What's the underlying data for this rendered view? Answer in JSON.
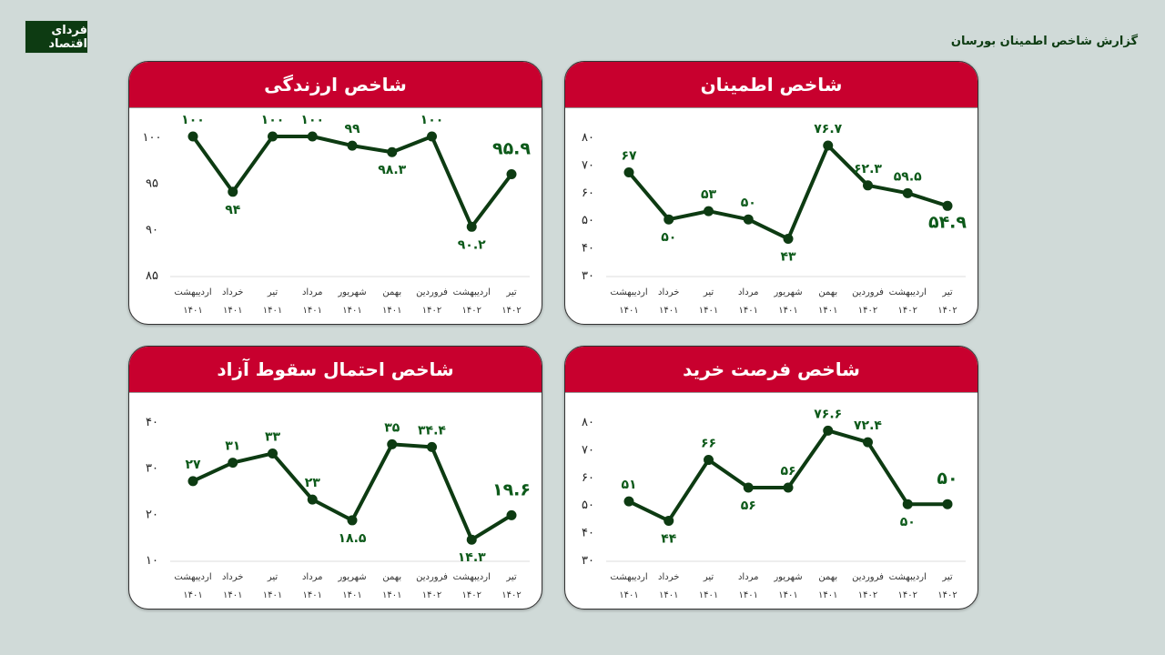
{
  "header": {
    "report_title": "گزارش شاخص اطمینان بورسان",
    "logo_text": "فردای اقتصاد"
  },
  "colors": {
    "line": "#0d3b12",
    "header": "#c8002e",
    "label": "#0d5a1a"
  },
  "chart_data": [
    {
      "type": "line",
      "title": "شاخص ارزندگی",
      "categories": [
        [
          "اردیبهشت",
          "۱۴۰۱"
        ],
        [
          "خرداد",
          "۱۴۰۱"
        ],
        [
          "تیر",
          "۱۴۰۱"
        ],
        [
          "مرداد",
          "۱۴۰۱"
        ],
        [
          "شهریور",
          "۱۴۰۱"
        ],
        [
          "بهمن",
          "۱۴۰۱"
        ],
        [
          "فروردین",
          "۱۴۰۲"
        ],
        [
          "اردیبهشت",
          "۱۴۰۲"
        ],
        [
          "تیر",
          "۱۴۰۲"
        ]
      ],
      "values": [
        100,
        94,
        100,
        100,
        99,
        98.3,
        100,
        90.2,
        95.9
      ],
      "ylim": [
        85,
        100
      ],
      "yticks": [
        85,
        90,
        95,
        100
      ]
    },
    {
      "type": "line",
      "title": "شاخص اطمینان",
      "categories": [
        [
          "اردیبهشت",
          "۱۴۰۱"
        ],
        [
          "خرداد",
          "۱۴۰۱"
        ],
        [
          "تیر",
          "۱۴۰۱"
        ],
        [
          "مرداد",
          "۱۴۰۱"
        ],
        [
          "شهریور",
          "۱۴۰۱"
        ],
        [
          "بهمن",
          "۱۴۰۱"
        ],
        [
          "فروردین",
          "۱۴۰۲"
        ],
        [
          "اردیبهشت",
          "۱۴۰۲"
        ],
        [
          "تیر",
          "۱۴۰۲"
        ]
      ],
      "values": [
        67,
        50,
        53,
        50,
        43,
        76.7,
        62.3,
        59.5,
        54.9
      ],
      "ylim": [
        30,
        80
      ],
      "yticks": [
        30,
        40,
        50,
        60,
        70,
        80
      ]
    },
    {
      "type": "line",
      "title": "شاخص احتمال سقوط آزاد",
      "categories": [
        [
          "اردیبهشت",
          "۱۴۰۱"
        ],
        [
          "خرداد",
          "۱۴۰۱"
        ],
        [
          "تیر",
          "۱۴۰۱"
        ],
        [
          "مرداد",
          "۱۴۰۱"
        ],
        [
          "شهریور",
          "۱۴۰۱"
        ],
        [
          "بهمن",
          "۱۴۰۱"
        ],
        [
          "فروردین",
          "۱۴۰۲"
        ],
        [
          "اردیبهشت",
          "۱۴۰۲"
        ],
        [
          "تیر",
          "۱۴۰۲"
        ]
      ],
      "values": [
        27,
        31,
        33,
        23,
        18.5,
        35,
        34.4,
        14.3,
        19.6
      ],
      "ylim": [
        10,
        40
      ],
      "yticks": [
        10,
        20,
        30,
        40
      ]
    },
    {
      "type": "line",
      "title": "شاخص فرصت خرید",
      "categories": [
        [
          "اردیبهشت",
          "۱۴۰۱"
        ],
        [
          "خرداد",
          "۱۴۰۱"
        ],
        [
          "تیر",
          "۱۴۰۱"
        ],
        [
          "مرداد",
          "۱۴۰۱"
        ],
        [
          "شهریور",
          "۱۴۰۱"
        ],
        [
          "بهمن",
          "۱۴۰۱"
        ],
        [
          "فروردین",
          "۱۴۰۲"
        ],
        [
          "اردیبهشت",
          "۱۴۰۲"
        ],
        [
          "تیر",
          "۱۴۰۲"
        ]
      ],
      "values": [
        51,
        44,
        66,
        56,
        56,
        76.6,
        72.4,
        50,
        50
      ],
      "ylim": [
        30,
        80
      ],
      "yticks": [
        30,
        40,
        50,
        60,
        70,
        80
      ]
    }
  ]
}
